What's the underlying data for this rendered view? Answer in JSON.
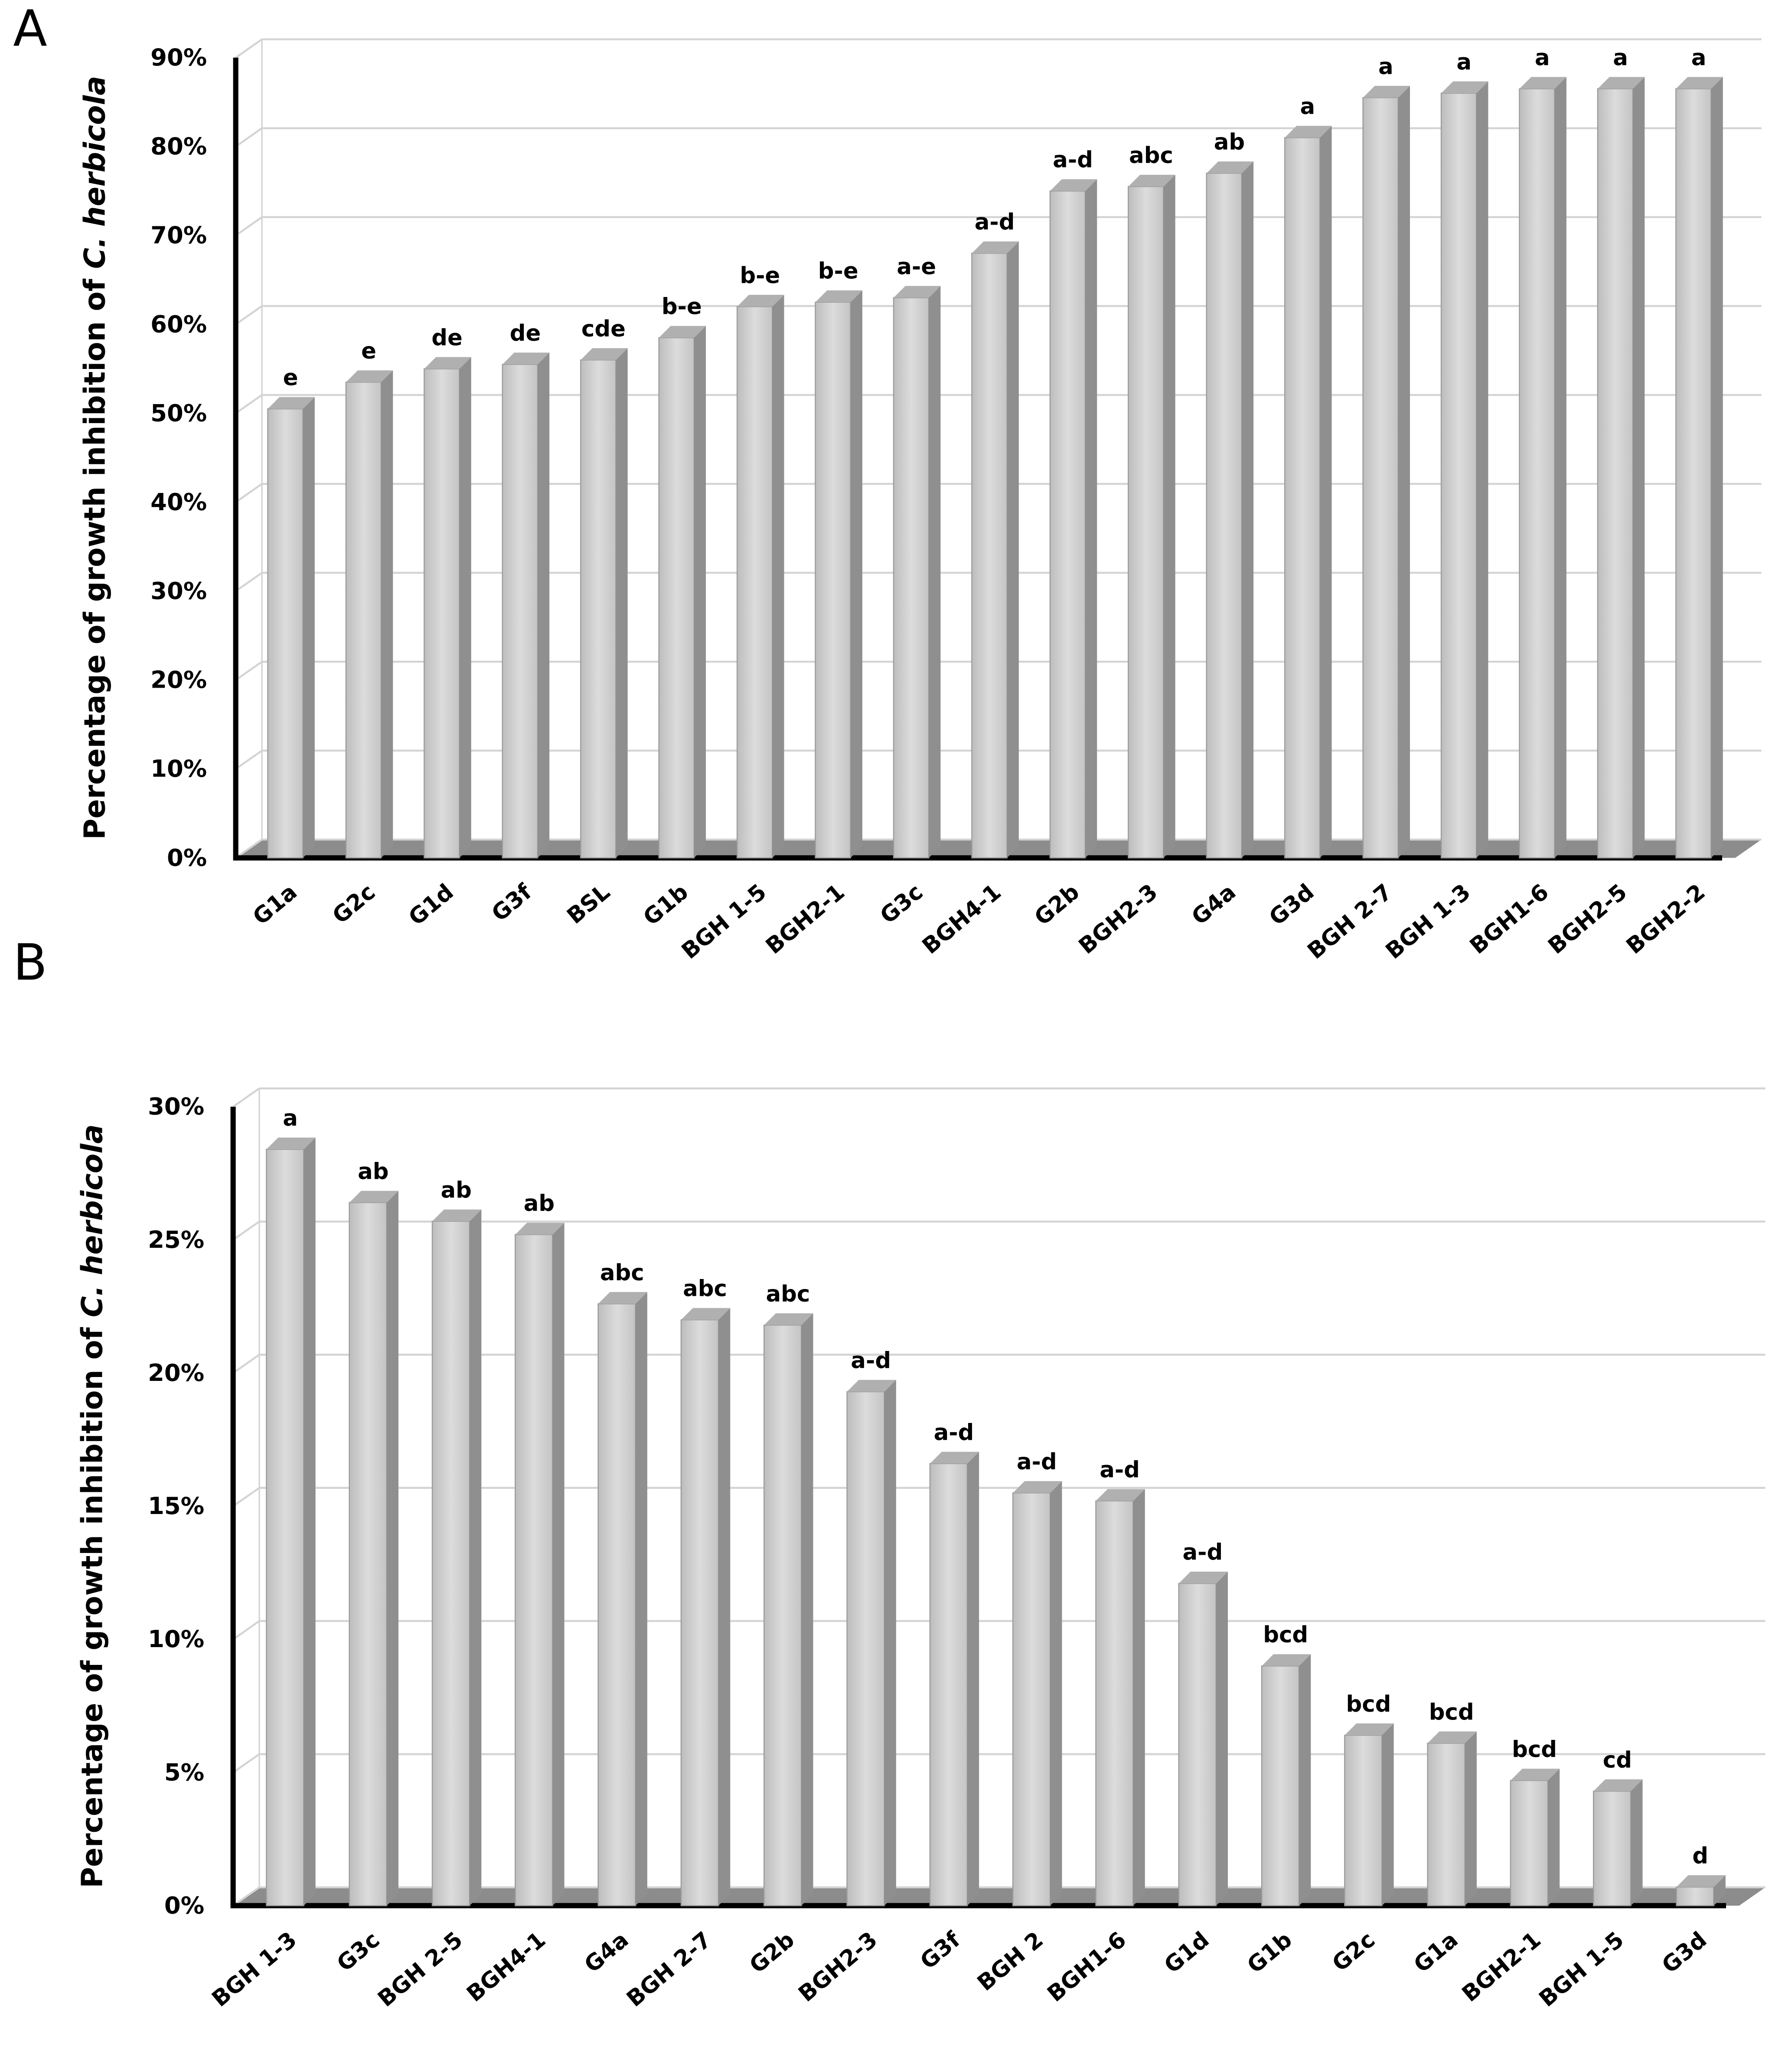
{
  "chart_data": [
    {
      "type": "bar",
      "panel": "A",
      "y_label": [
        "Percentage of growth  inhibition of ",
        "C. herbicola"
      ],
      "categories": [
        "G1a",
        "G2c",
        "G1d",
        "G3f",
        "BSL",
        "G1b",
        "BGH 1-5",
        "BGH2-1",
        "G3c",
        "BGH4-1",
        "G2b",
        "BGH2-3",
        "G4a",
        "G3d",
        "BGH 2-7",
        "BGH 1-3",
        "BGH1-6",
        "BGH2-5",
        "BGH2-2"
      ],
      "values": [
        50.5,
        53.5,
        55,
        55.5,
        56,
        58.5,
        62,
        62.5,
        63,
        68,
        75,
        75.5,
        77,
        81,
        85.5,
        86,
        86.5,
        86.5,
        86.5
      ],
      "letters": [
        "e",
        "e",
        "de",
        "de",
        "cde",
        "b-e",
        "b-e",
        "b-e",
        "a-e",
        "a-d",
        "a-d",
        "abc",
        "ab",
        "a",
        "a",
        "a",
        "a",
        "a",
        "a"
      ],
      "color": "#d0d0d0",
      "ylim": [
        0,
        90
      ],
      "yticks": [
        {
          "value": 0,
          "label": "0%"
        },
        {
          "value": 10,
          "label": "10%"
        },
        {
          "value": 20,
          "label": "20%"
        },
        {
          "value": 30,
          "label": "30%"
        },
        {
          "value": 40,
          "label": "40%"
        },
        {
          "value": 50,
          "label": "50%"
        },
        {
          "value": 60,
          "label": "60%"
        },
        {
          "value": 70,
          "label": "70%"
        },
        {
          "value": 80,
          "label": "80%"
        },
        {
          "value": 90,
          "label": "90%"
        }
      ],
      "grid": true
    },
    {
      "type": "bar",
      "panel": "B",
      "y_label": [
        "Percentage of growth  inhibition of ",
        "C. herbicola"
      ],
      "categories": [
        "BGH 1-3",
        "G3c",
        "BGH 2-5",
        "BGH4-1",
        "G4a",
        "BGH 2-7",
        "G2b",
        "BGH2-3",
        "G3f",
        "BGH 2",
        "BGH1-6",
        "G1d",
        "G1b",
        "G2c",
        "G1a",
        "BGH2-1",
        "BGH 1-5",
        "G3d"
      ],
      "values": [
        28.4,
        26.4,
        25.7,
        25.2,
        22.6,
        22.0,
        21.8,
        19.3,
        16.6,
        15.5,
        15.2,
        12.1,
        9.0,
        6.4,
        6.1,
        4.7,
        4.3,
        0.7
      ],
      "letters": [
        "a",
        "ab",
        "ab",
        "ab",
        "abc",
        "abc",
        "abc",
        "a-d",
        "a-d",
        "a-d",
        "a-d",
        "a-d",
        "bcd",
        "bcd",
        "bcd",
        "bcd",
        "cd",
        "d"
      ],
      "color": "#d0d0d0",
      "ylim": [
        0,
        30
      ],
      "yticks": [
        {
          "value": 0,
          "label": "0%"
        },
        {
          "value": 5,
          "label": "5%"
        },
        {
          "value": 10,
          "label": "10%"
        },
        {
          "value": 15,
          "label": "15%"
        },
        {
          "value": 20,
          "label": "20%"
        },
        {
          "value": 25,
          "label": "25%"
        },
        {
          "value": 30,
          "label": "30%"
        }
      ],
      "grid": true
    }
  ]
}
